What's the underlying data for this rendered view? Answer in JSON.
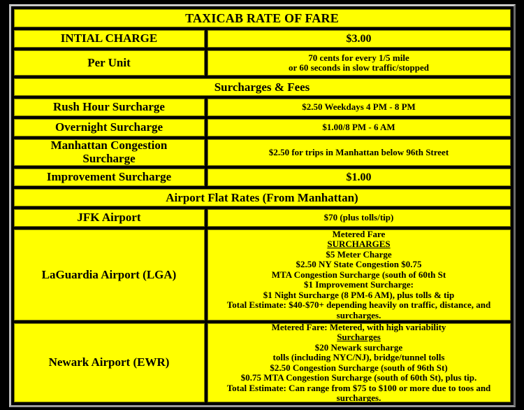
{
  "colors": {
    "page_background": "#000000",
    "cell_background": "#ffff00",
    "text": "#000000",
    "cell_border": "#7f7f00",
    "frame_border": "#c9c9c9"
  },
  "table": {
    "title": "TAXICAB RATE OF FARE",
    "rows": [
      {
        "label": "INTIAL CHARGE",
        "lines": [
          "$3.00"
        ]
      },
      {
        "label": "Per Unit",
        "lines": [
          "70 cents for every 1/5 mile",
          "or 60 seconds in slow traffic/stopped"
        ]
      }
    ],
    "surcharges": {
      "heading": "Surcharges & Fees",
      "rows": [
        {
          "label": "Rush Hour Surcharge",
          "lines": [
            "$2.50 Weekdays 4 PM - 8 PM"
          ]
        },
        {
          "label": "Overnight Surcharge",
          "lines": [
            "$1.00/8 PM - 6 AM"
          ]
        },
        {
          "label": "Manhattan Congestion Surcharge",
          "lines": [
            "$2.50 for trips in Manhattan below 96th Street"
          ]
        },
        {
          "label": "Improvement Surcharge",
          "lines": [
            "$1.00"
          ]
        }
      ]
    },
    "airports": {
      "heading": "Airport Flat Rates (From Manhattan)",
      "rows": [
        {
          "label": "JFK Airport",
          "lines": [
            "$70 (plus tolls/tip)"
          ]
        },
        {
          "label": "LaGuardia Airport (LGA)",
          "lines": [
            "Metered Fare",
            "SURCHARGES",
            "$5 Meter Charge",
            "$2.50 NY State Congestion $0.75",
            "MTA Congestion Surcharge (south of 60th St",
            "$1 Improvement Surcharge:",
            "$1 Night Surcharge (8 PM-6 AM), plus tolls & tip",
            "Total Estimate: $40-$70+ depending heavily on traffic, distance, and surcharges."
          ]
        },
        {
          "label": "Newark Airport (EWR)",
          "lines": [
            "Metered Fare: Metered, with high variability",
            "Surcharges",
            "$20 Newark surcharge",
            "tolls (including NYC/NJ), bridge/tunnel tolls",
            "$2.50 Congestion Surcharge (south of 96th St)",
            "$0.75 MTA Congestion Surcharge (south of 60th St), plus tip.",
            "Total Estimate: Can range from $75 to $100 or more due to toos and surcharges."
          ]
        }
      ]
    }
  }
}
